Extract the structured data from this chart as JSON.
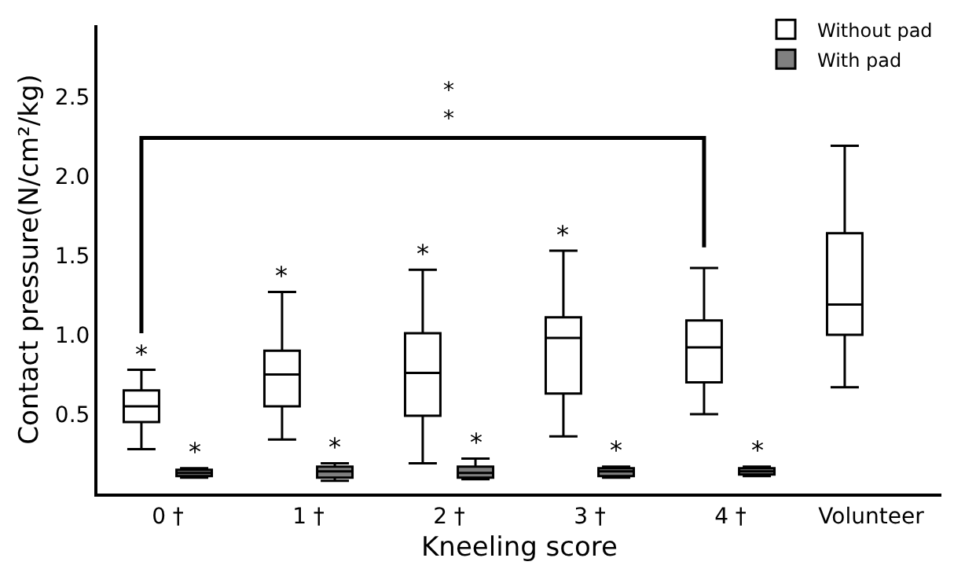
{
  "chart_data": {
    "type": "box",
    "xlabel": "Kneeling score",
    "ylabel": "Contact pressure(N/cm²/kg)",
    "categories": [
      "0 †",
      "1 †",
      "2 †",
      "3 †",
      "4 †",
      "Volunteer"
    ],
    "ylim": [
      0,
      2.95
    ],
    "yticks": [
      0.5,
      {
        "value": 1,
        "label": "1.0"
      },
      1.5,
      {
        "value": 2,
        "label": "2.0"
      },
      2.5
    ],
    "grid": false,
    "legend": "top right",
    "series": [
      {
        "name": "Without pad",
        "color": "#ffffff",
        "boxes": [
          {
            "low": 0.28,
            "q1": 0.45,
            "median": 0.55,
            "q3": 0.65,
            "high": 0.78
          },
          {
            "low": 0.34,
            "q1": 0.55,
            "median": 0.75,
            "q3": 0.9,
            "high": 1.27
          },
          {
            "low": 0.19,
            "q1": 0.49,
            "median": 0.76,
            "q3": 1.01,
            "high": 1.41
          },
          {
            "low": 0.36,
            "q1": 0.63,
            "median": 0.98,
            "q3": 1.11,
            "high": 1.53
          },
          {
            "low": 0.5,
            "q1": 0.7,
            "median": 0.92,
            "q3": 1.09,
            "high": 1.42
          },
          {
            "low": 0.67,
            "q1": 1.0,
            "median": 1.19,
            "q3": 1.64,
            "high": 2.19
          }
        ]
      },
      {
        "name": "With pad",
        "color": "#808080",
        "boxes": [
          {
            "low": 0.1,
            "q1": 0.11,
            "median": 0.13,
            "q3": 0.15,
            "high": 0.16
          },
          {
            "low": 0.08,
            "q1": 0.1,
            "median": 0.14,
            "q3": 0.17,
            "high": 0.19
          },
          {
            "low": 0.09,
            "q1": 0.1,
            "median": 0.13,
            "q3": 0.17,
            "high": 0.22
          },
          {
            "low": 0.1,
            "q1": 0.11,
            "median": 0.14,
            "q3": 0.16,
            "high": 0.17
          },
          {
            "low": 0.11,
            "q1": 0.12,
            "median": 0.14,
            "q3": 0.16,
            "high": 0.17
          },
          null
        ]
      }
    ],
    "annotations": [
      "*",
      "*",
      "*",
      "*",
      "*",
      "*",
      "*",
      "*",
      "*",
      "*\n*"
    ]
  }
}
